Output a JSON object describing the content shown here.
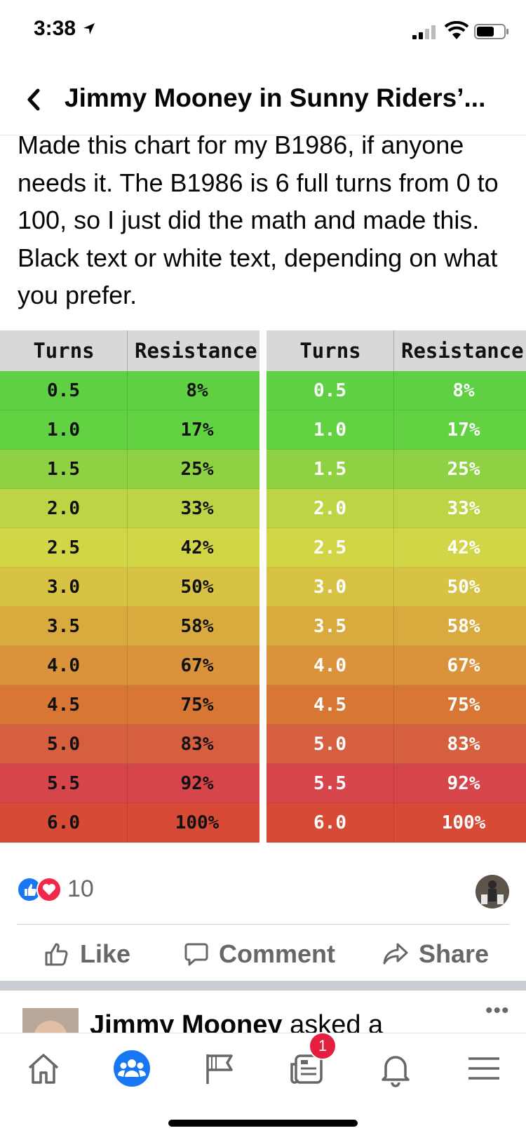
{
  "status": {
    "time": "3:38"
  },
  "header": {
    "title": "Jimmy Mooney in Sunny Riders’..."
  },
  "post": {
    "text": "Made this chart for my B1986, if anyone needs it. The B1986 is 6 full turns from 0 to 100, so I just did the math and made this. Black text or white text, depending on what you prefer.",
    "image": {
      "headers": [
        "Turns",
        "Resistance"
      ],
      "rows": [
        {
          "turns": "0.5",
          "resistance": "8%",
          "color": "#5fd043"
        },
        {
          "turns": "1.0",
          "resistance": "17%",
          "color": "#62d142"
        },
        {
          "turns": "1.5",
          "resistance": "25%",
          "color": "#8ed243"
        },
        {
          "turns": "2.0",
          "resistance": "33%",
          "color": "#bdd444"
        },
        {
          "turns": "2.5",
          "resistance": "42%",
          "color": "#d2d546"
        },
        {
          "turns": "3.0",
          "resistance": "50%",
          "color": "#d7c244"
        },
        {
          "turns": "3.5",
          "resistance": "58%",
          "color": "#d9ab3f"
        },
        {
          "turns": "4.0",
          "resistance": "67%",
          "color": "#da933a"
        },
        {
          "turns": "4.5",
          "resistance": "75%",
          "color": "#d87733"
        },
        {
          "turns": "5.0",
          "resistance": "83%",
          "color": "#d65f3f"
        },
        {
          "turns": "5.5",
          "resistance": "92%",
          "color": "#d6454a"
        },
        {
          "turns": "6.0",
          "resistance": "100%",
          "color": "#d74a36"
        }
      ]
    }
  },
  "reactions": {
    "count": "10"
  },
  "actions": {
    "like": "Like",
    "comment": "Comment",
    "share": "Share"
  },
  "next_post": {
    "name": "Jimmy Mooney",
    "text": " asked a"
  },
  "tabbar": {
    "badge": "1"
  },
  "colors": {
    "accent": "#1877f2",
    "text_secondary": "#65676b",
    "badge": "#e41e3f"
  }
}
